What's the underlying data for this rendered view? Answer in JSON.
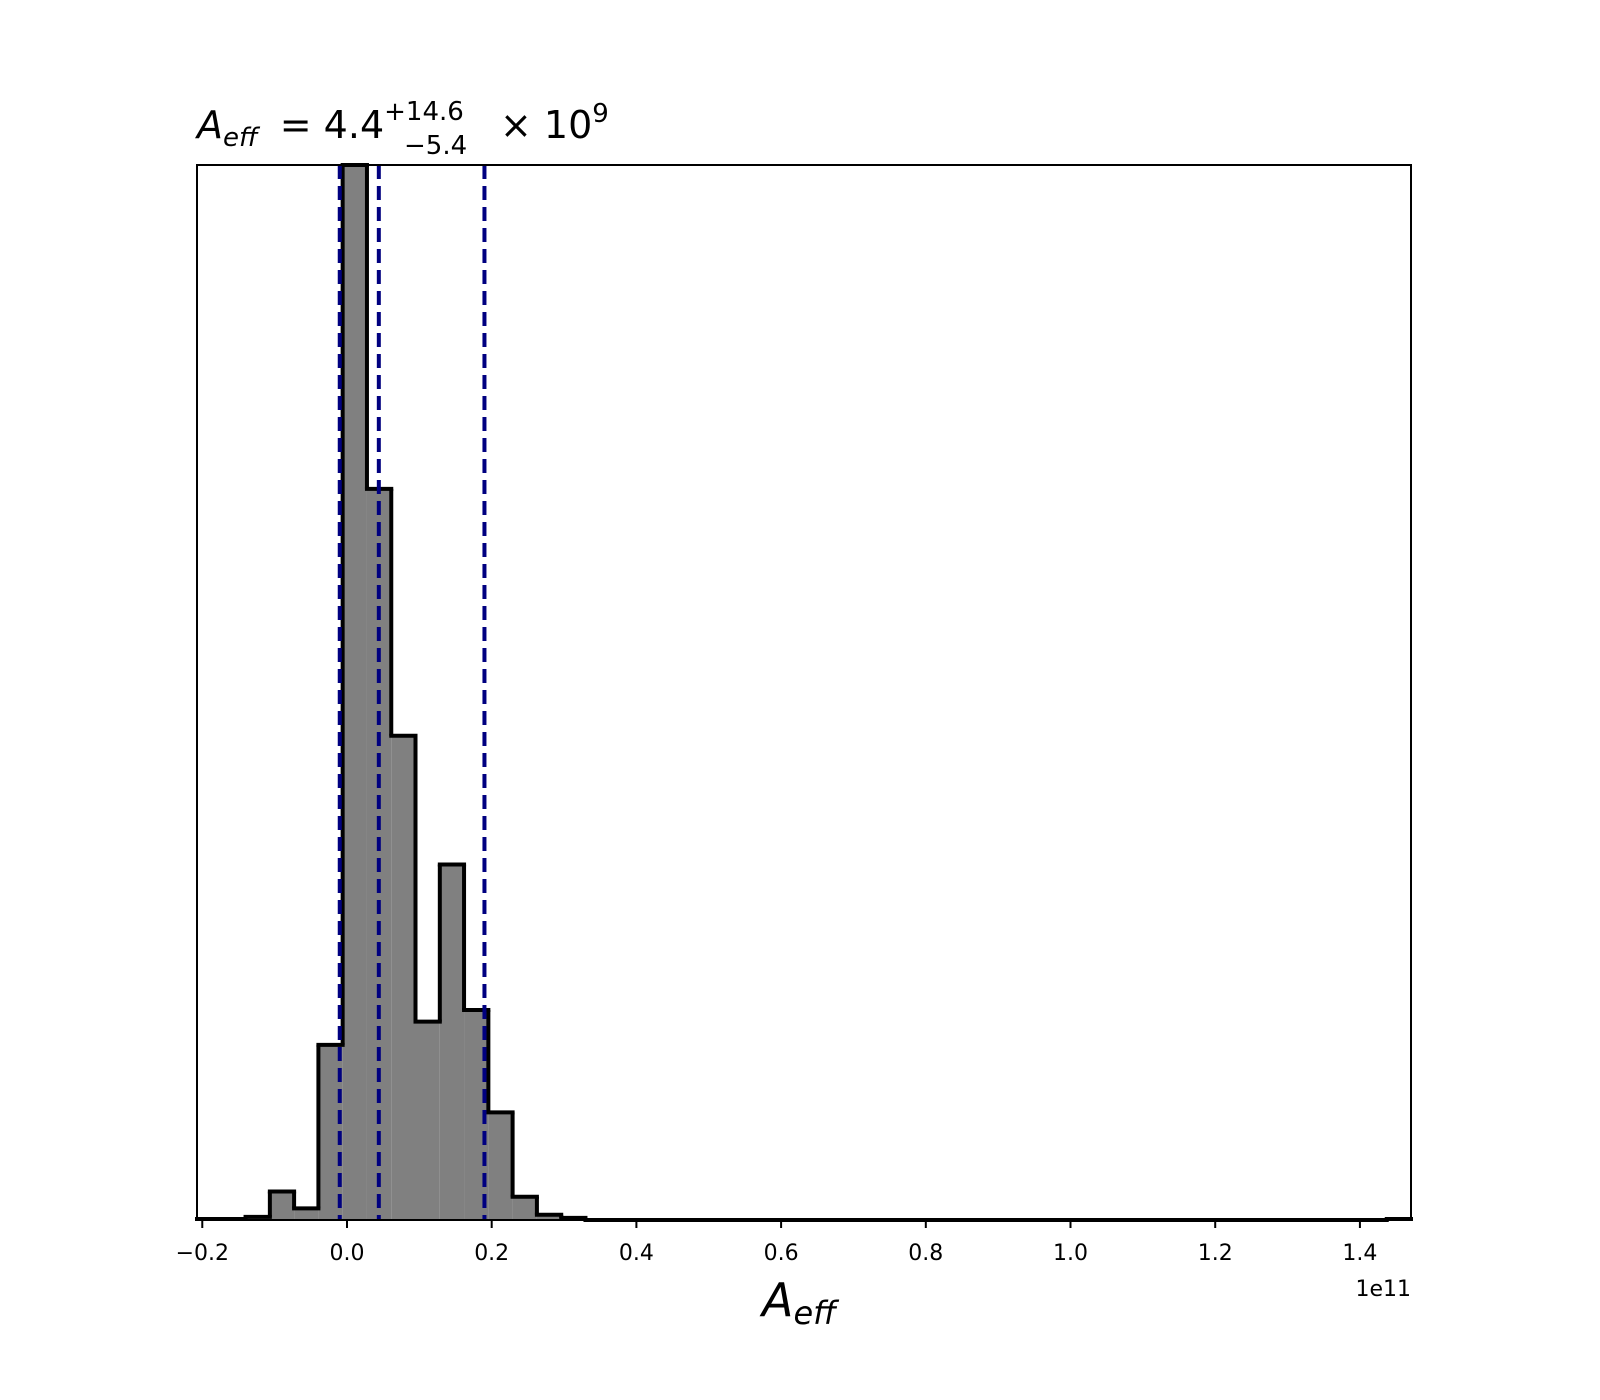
{
  "chart_data": {
    "type": "histogram",
    "title": {
      "symbol": "A",
      "subscript": "eff",
      "equals": "= 4.4",
      "upper": "+14.6",
      "lower": "−5.4",
      "times": "× 10",
      "exponent": "9"
    },
    "xlabel": {
      "symbol": "A",
      "subscript": "eff"
    },
    "offset_text": "1e11",
    "bins": [
      -0.2073,
      -0.1737,
      -0.1402,
      -0.1066,
      -0.0731,
      -0.0395,
      -0.006,
      0.0276,
      0.0612,
      0.0947,
      0.1283,
      0.1618,
      0.1954,
      0.2289,
      0.2625,
      0.2961,
      0.3296,
      0.3632,
      0.3967,
      0.4303,
      0.4639,
      0.4974,
      0.531,
      0.5645,
      0.5981,
      0.6317,
      0.6652,
      0.6988,
      0.7323,
      0.7659,
      0.7994,
      0.833,
      0.8666,
      0.9001,
      0.9337,
      0.9672,
      1.0008,
      1.0344,
      1.0679,
      1.1015,
      1.135,
      1.1686,
      1.2022,
      1.2357,
      1.2693,
      1.3028,
      1.3364,
      1.37,
      1.4035,
      1.4371,
      1.4706
    ],
    "values": [
      0.1,
      0.1,
      0.3,
      2.7,
      1.1,
      16.6,
      100,
      69.3,
      45.9,
      18.8,
      33.7,
      19.9,
      10.2,
      2.2,
      0.5,
      0.2,
      0,
      0,
      0,
      0,
      0,
      0,
      0,
      0,
      0,
      0,
      0,
      0,
      0,
      0,
      0,
      0,
      0,
      0,
      0,
      0,
      0,
      0,
      0,
      0,
      0,
      0,
      0,
      0,
      0,
      0,
      0,
      0,
      0,
      0.1
    ],
    "color": "#808080",
    "edgecolor": "#000000",
    "quantiles": [
      -0.01,
      0.044,
      0.19
    ],
    "quantile_color": "#000080",
    "xlim": [
      -0.2073,
      1.4706
    ],
    "ylim": [
      0,
      100
    ],
    "xticks": [
      {
        "value": -0.2,
        "label": "−0.2"
      },
      {
        "value": 0,
        "label": "0.0"
      },
      0.2,
      0.4,
      0.6,
      0.8,
      {
        "value": 1,
        "label": "1.0"
      },
      1.2,
      1.4
    ]
  }
}
